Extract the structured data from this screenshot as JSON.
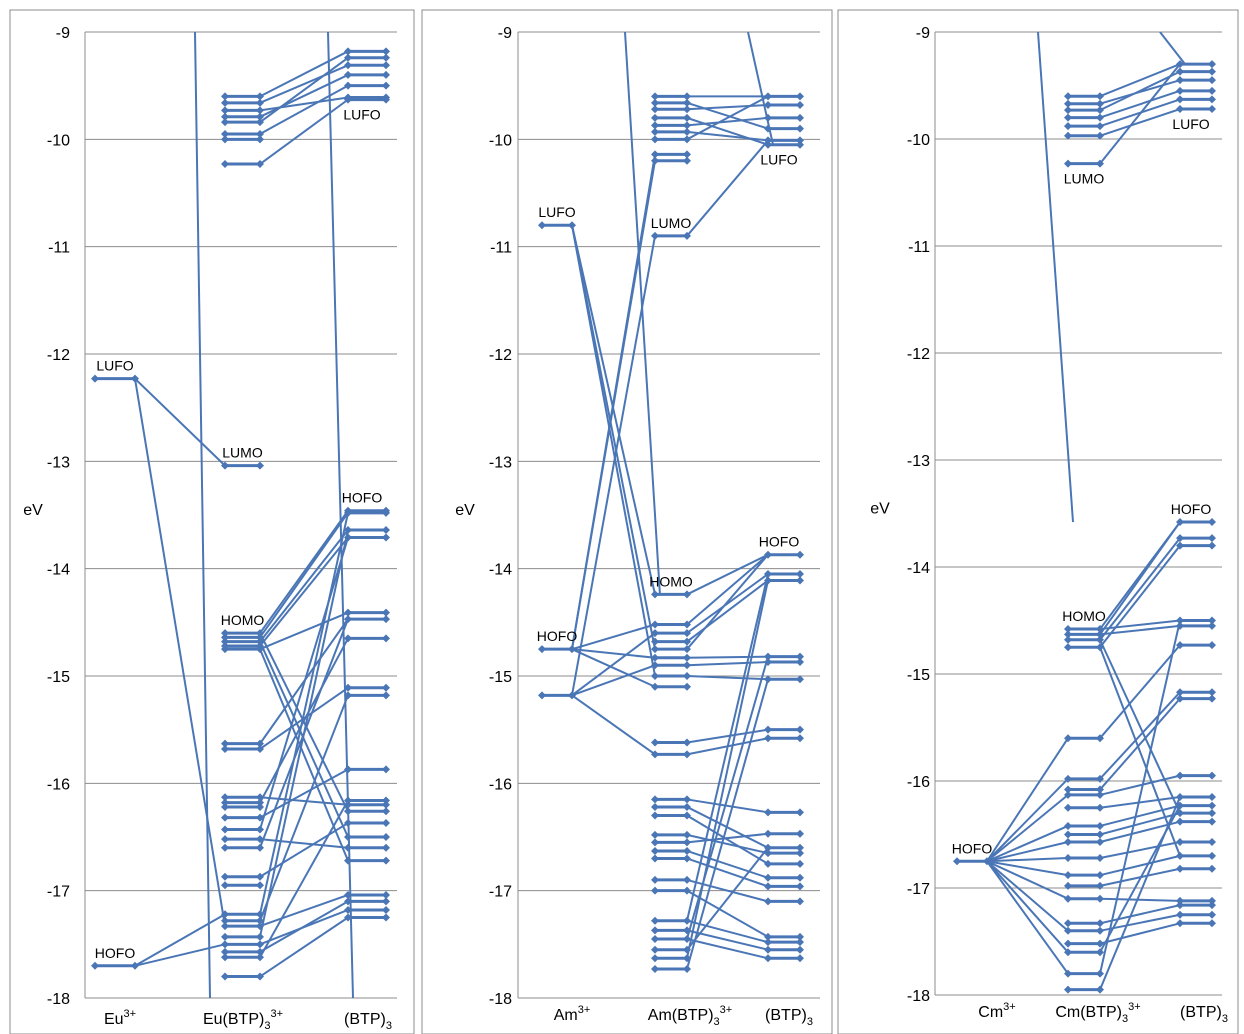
{
  "colors": {
    "series": "#4a76b6",
    "grid": "#8c8c8c",
    "frame": "#8c8c8c"
  },
  "chart_data": [
    {
      "type": "line",
      "title": "",
      "ylabel": "eV",
      "ylim": [
        -18,
        -9
      ],
      "yticks": [
        "-9",
        "-10",
        "-11",
        "-12",
        "-13",
        "-14",
        "-15",
        "-16",
        "-17",
        "-18"
      ],
      "x_categories": [
        {
          "base": "Eu",
          "sup": "3+",
          "sub": ""
        },
        {
          "base": "Eu(BTP)",
          "sub": "3",
          "sup": "3+"
        },
        {
          "base": "(BTP)",
          "sub": "3",
          "sup": ""
        }
      ],
      "levels": [
        [
          -12.23,
          -17.7
        ],
        [
          -9.6,
          -9.66,
          -9.73,
          -9.79,
          -9.84,
          -9.95,
          -10.0,
          -10.23,
          -13.04,
          -14.6,
          -14.64,
          -14.68,
          -14.72,
          -14.75,
          -15.63,
          -15.68,
          -16.13,
          -16.18,
          -16.22,
          -16.32,
          -16.43,
          -16.52,
          -16.6,
          -16.87,
          -16.95,
          -17.22,
          -17.28,
          -17.33,
          -17.43,
          -17.5,
          -17.57,
          -17.62,
          -17.8
        ],
        [
          -9.18,
          -9.24,
          -9.31,
          -9.4,
          -9.5,
          -9.61,
          -9.63,
          -13.46,
          -13.48,
          -13.64,
          -13.71,
          -14.41,
          -14.47,
          -14.65,
          -15.11,
          -15.18,
          -15.87,
          -16.16,
          -16.2,
          -16.26,
          -16.37,
          -16.5,
          -16.6,
          -16.72,
          -17.04,
          -17.1,
          -17.18,
          -17.25
        ]
      ],
      "annotations": [
        {
          "text": "LUFO",
          "column": 0,
          "y": -12.23
        },
        {
          "text": "HOFO",
          "column": 0,
          "y": -17.7
        },
        {
          "text": "LUMO",
          "column": 1,
          "y": -13.04
        },
        {
          "text": "HOMO",
          "column": 1,
          "y": -14.6
        },
        {
          "text": "LUFO",
          "column": 2,
          "y": -9.63
        },
        {
          "text": "HOFO",
          "column": 2,
          "y": -13.46
        }
      ],
      "connections": [
        [
          0,
          0,
          1,
          8
        ],
        [
          0,
          0,
          1,
          27
        ],
        [
          0,
          1,
          1,
          25
        ],
        [
          0,
          1,
          1,
          29
        ],
        [
          1,
          9,
          2,
          7
        ],
        [
          1,
          10,
          2,
          8
        ],
        [
          1,
          11,
          2,
          9
        ],
        [
          1,
          12,
          2,
          10
        ],
        [
          1,
          13,
          2,
          11
        ],
        [
          1,
          14,
          2,
          12
        ],
        [
          1,
          9,
          2,
          19
        ],
        [
          1,
          11,
          2,
          21
        ],
        [
          1,
          13,
          2,
          23
        ],
        [
          1,
          0,
          2,
          0
        ],
        [
          1,
          1,
          2,
          2
        ],
        [
          1,
          3,
          2,
          3
        ],
        [
          1,
          5,
          2,
          4
        ],
        [
          1,
          7,
          2,
          6
        ],
        [
          1,
          2,
          2,
          5
        ],
        [
          1,
          4,
          2,
          1
        ],
        [
          1,
          15,
          2,
          14
        ],
        [
          1,
          16,
          2,
          18
        ],
        [
          1,
          17,
          2,
          13
        ],
        [
          1,
          19,
          2,
          16
        ],
        [
          1,
          21,
          2,
          22
        ],
        [
          1,
          23,
          2,
          20
        ],
        [
          1,
          25,
          2,
          8
        ],
        [
          1,
          27,
          2,
          24
        ],
        [
          1,
          29,
          2,
          26
        ],
        [
          1,
          31,
          2,
          17
        ],
        [
          1,
          32,
          2,
          27
        ],
        [
          1,
          26,
          2,
          15
        ],
        [
          1,
          28,
          2,
          9
        ],
        [
          1,
          30,
          2,
          25
        ],
        [
          1,
          22,
          2,
          12
        ],
        [
          1,
          20,
          2,
          10
        ]
      ],
      "offscreen_lines": [
        [
          1,
          -9,
          -18
        ],
        [
          2,
          -9,
          -18
        ]
      ]
    },
    {
      "type": "line",
      "title": "",
      "ylabel": "eV",
      "ylim": [
        -18,
        -9
      ],
      "yticks": [
        "-9",
        "-10",
        "-11",
        "-12",
        "-13",
        "-14",
        "-15",
        "-16",
        "-17",
        "-18"
      ],
      "x_categories": [
        {
          "base": "Am",
          "sup": "3+",
          "sub": ""
        },
        {
          "base": "Am(BTP)",
          "sub": "3",
          "sup": "3+"
        },
        {
          "base": "(BTP)",
          "sub": "3",
          "sup": ""
        }
      ],
      "levels": [
        [
          -10.8,
          -14.75,
          -15.18
        ],
        [
          -9.6,
          -9.66,
          -9.72,
          -9.8,
          -9.87,
          -9.93,
          -10.0,
          -10.14,
          -10.2,
          -10.9,
          -14.24,
          -14.52,
          -14.6,
          -14.68,
          -14.75,
          -14.83,
          -14.9,
          -15.0,
          -15.1,
          -15.62,
          -15.73,
          -16.15,
          -16.22,
          -16.3,
          -16.48,
          -16.55,
          -16.63,
          -16.7,
          -16.9,
          -17.0,
          -17.28,
          -17.37,
          -17.45,
          -17.55,
          -17.63,
          -17.73
        ],
        [
          -9.6,
          -9.68,
          -9.8,
          -9.9,
          -10.01,
          -10.05,
          -13.87,
          -14.05,
          -14.11,
          -14.82,
          -14.87,
          -15.03,
          -15.5,
          -15.58,
          -16.27,
          -16.47,
          -16.6,
          -16.65,
          -16.75,
          -16.88,
          -16.96,
          -17.1,
          -17.43,
          -17.48,
          -17.55,
          -17.63
        ]
      ],
      "annotations": [
        {
          "text": "LUFO",
          "column": 0,
          "y": -10.8
        },
        {
          "text": "HOFO",
          "column": 0,
          "y": -14.75
        },
        {
          "text": "LUMO",
          "column": 1,
          "y": -10.9
        },
        {
          "text": "HOMO",
          "column": 1,
          "y": -14.24
        },
        {
          "text": "LUFO",
          "column": 2,
          "y": -10.05
        },
        {
          "text": "HOFO",
          "column": 2,
          "y": -13.87
        }
      ],
      "connections": [
        [
          0,
          0,
          1,
          10
        ],
        [
          0,
          0,
          1,
          14
        ],
        [
          0,
          0,
          1,
          17
        ],
        [
          0,
          1,
          1,
          7
        ],
        [
          0,
          1,
          1,
          8
        ],
        [
          0,
          1,
          1,
          11
        ],
        [
          0,
          1,
          1,
          15
        ],
        [
          0,
          1,
          1,
          18
        ],
        [
          0,
          2,
          1,
          9
        ],
        [
          0,
          2,
          1,
          12
        ],
        [
          0,
          2,
          1,
          16
        ],
        [
          0,
          2,
          1,
          20
        ],
        [
          1,
          9,
          2,
          4
        ],
        [
          1,
          0,
          2,
          0
        ],
        [
          1,
          1,
          2,
          3
        ],
        [
          1,
          2,
          2,
          1
        ],
        [
          1,
          3,
          2,
          5
        ],
        [
          1,
          4,
          2,
          2
        ],
        [
          1,
          5,
          2,
          4
        ],
        [
          1,
          6,
          2,
          0
        ],
        [
          1,
          10,
          2,
          6
        ],
        [
          1,
          11,
          2,
          6
        ],
        [
          1,
          12,
          2,
          7
        ],
        [
          1,
          13,
          2,
          8
        ],
        [
          1,
          14,
          2,
          6
        ],
        [
          1,
          15,
          2,
          9
        ],
        [
          1,
          16,
          2,
          10
        ],
        [
          1,
          17,
          2,
          11
        ],
        [
          1,
          19,
          2,
          12
        ],
        [
          1,
          20,
          2,
          13
        ],
        [
          1,
          21,
          2,
          14
        ],
        [
          1,
          22,
          2,
          16
        ],
        [
          1,
          23,
          2,
          18
        ],
        [
          1,
          24,
          2,
          17
        ],
        [
          1,
          25,
          2,
          15
        ],
        [
          1,
          26,
          2,
          19
        ],
        [
          1,
          27,
          2,
          20
        ],
        [
          1,
          28,
          2,
          21
        ],
        [
          1,
          29,
          2,
          22
        ],
        [
          1,
          30,
          2,
          23
        ],
        [
          1,
          31,
          2,
          24
        ],
        [
          1,
          32,
          2,
          25
        ],
        [
          1,
          33,
          2,
          16
        ],
        [
          1,
          34,
          2,
          8
        ],
        [
          1,
          35,
          2,
          11
        ],
        [
          1,
          30,
          2,
          7
        ],
        [
          1,
          32,
          2,
          9
        ]
      ],
      "offscreen_lines": [
        [
          1,
          -9,
          -14.25
        ],
        [
          2,
          -9,
          -10.05
        ]
      ]
    },
    {
      "type": "line",
      "title": "",
      "ylabel": "eV",
      "ylim": [
        -18,
        -9
      ],
      "yticks": [
        "-9",
        "-10",
        "-11",
        "-12",
        "-13",
        "-14",
        "-15",
        "-16",
        "-17",
        "-18"
      ],
      "x_categories": [
        {
          "base": "Cm",
          "sup": "3+",
          "sub": ""
        },
        {
          "base": "Cm(BTP)",
          "sub": "3",
          "sup": "3+"
        },
        {
          "base": "(BTP)",
          "sub": "3",
          "sup": ""
        }
      ],
      "levels": [
        [
          -16.75
        ],
        [
          -9.6,
          -9.67,
          -9.73,
          -9.8,
          -9.88,
          -9.97,
          -10.23,
          -14.58,
          -14.63,
          -14.68,
          -14.75,
          -15.6,
          -15.98,
          -16.08,
          -16.13,
          -16.25,
          -16.42,
          -16.5,
          -16.57,
          -16.72,
          -16.88,
          -16.98,
          -17.1,
          -17.33,
          -17.4,
          -17.52,
          -17.6,
          -17.8,
          -17.95
        ],
        [
          -9.3,
          -9.37,
          -9.45,
          -9.55,
          -9.63,
          -9.72,
          -13.58,
          -13.73,
          -13.8,
          -14.5,
          -14.55,
          -14.73,
          -15.17,
          -15.23,
          -15.95,
          -16.15,
          -16.23,
          -16.3,
          -16.38,
          -16.57,
          -16.7,
          -16.82,
          -17.12,
          -17.16,
          -17.25,
          -17.33
        ]
      ],
      "annotations": [
        {
          "text": "HOFO",
          "column": 0,
          "y": -16.75
        },
        {
          "text": "LUMO",
          "column": 1,
          "y": -10.23
        },
        {
          "text": "HOMO",
          "column": 1,
          "y": -14.58
        },
        {
          "text": "LUFO",
          "column": 2,
          "y": -9.72
        },
        {
          "text": "HOFO",
          "column": 2,
          "y": -13.58
        }
      ],
      "connections": [
        [
          0,
          0,
          1,
          11
        ],
        [
          0,
          0,
          1,
          12
        ],
        [
          0,
          0,
          1,
          14
        ],
        [
          0,
          0,
          1,
          16
        ],
        [
          0,
          0,
          1,
          18
        ],
        [
          0,
          0,
          1,
          19
        ],
        [
          0,
          0,
          1,
          20
        ],
        [
          0,
          0,
          1,
          22
        ],
        [
          0,
          0,
          1,
          24
        ],
        [
          0,
          0,
          1,
          26
        ],
        [
          0,
          0,
          1,
          27
        ],
        [
          1,
          0,
          2,
          0
        ],
        [
          1,
          1,
          2,
          2
        ],
        [
          1,
          2,
          2,
          1
        ],
        [
          1,
          3,
          2,
          3
        ],
        [
          1,
          4,
          2,
          4
        ],
        [
          1,
          5,
          2,
          5
        ],
        [
          1,
          6,
          2,
          0
        ],
        [
          1,
          7,
          2,
          6
        ],
        [
          1,
          8,
          2,
          6
        ],
        [
          1,
          9,
          2,
          7
        ],
        [
          1,
          10,
          2,
          8
        ],
        [
          1,
          7,
          2,
          9
        ],
        [
          1,
          8,
          2,
          10
        ],
        [
          1,
          11,
          2,
          11
        ],
        [
          1,
          12,
          2,
          12
        ],
        [
          1,
          13,
          2,
          13
        ],
        [
          1,
          14,
          2,
          14
        ],
        [
          1,
          15,
          2,
          15
        ],
        [
          1,
          16,
          2,
          16
        ],
        [
          1,
          17,
          2,
          17
        ],
        [
          1,
          18,
          2,
          18
        ],
        [
          1,
          19,
          2,
          19
        ],
        [
          1,
          20,
          2,
          20
        ],
        [
          1,
          21,
          2,
          21
        ],
        [
          1,
          22,
          2,
          22
        ],
        [
          1,
          23,
          2,
          23
        ],
        [
          1,
          24,
          2,
          24
        ],
        [
          1,
          25,
          2,
          25
        ],
        [
          1,
          26,
          2,
          16
        ],
        [
          1,
          27,
          2,
          9
        ],
        [
          1,
          28,
          2,
          15
        ],
        [
          1,
          9,
          2,
          17
        ],
        [
          1,
          10,
          2,
          20
        ]
      ],
      "offscreen_lines": [
        [
          1,
          -9,
          -13.58
        ],
        [
          2,
          -9,
          -9.3
        ]
      ]
    }
  ]
}
